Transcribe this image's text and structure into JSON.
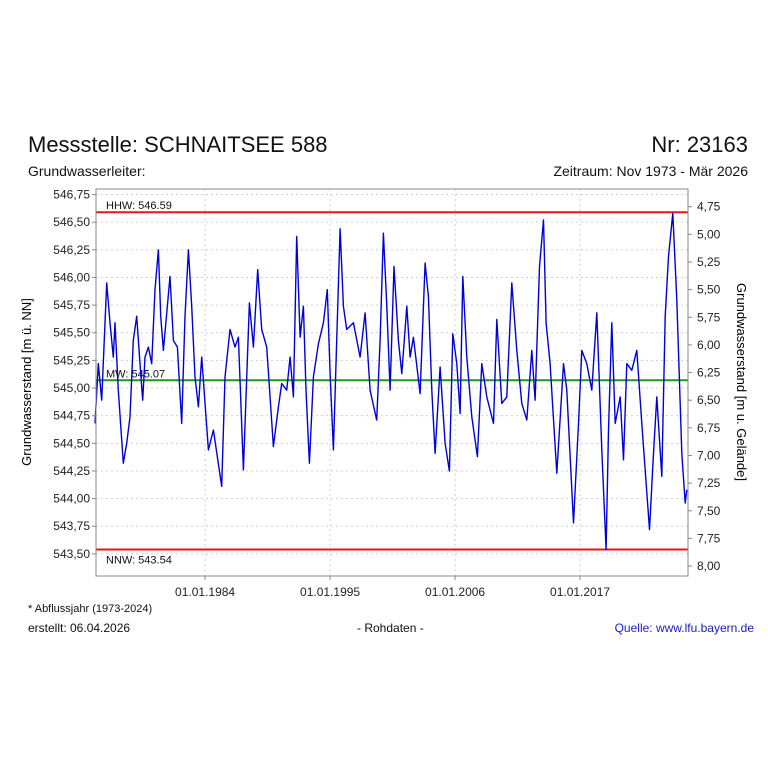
{
  "header": {
    "title": "Messstelle: SCHNAITSEE 588",
    "number": "Nr: 23163",
    "aquifer_label": "Grundwasserleiter:",
    "period": "Zeitraum: Nov 1973 - Mär 2026"
  },
  "footer": {
    "note": "* Abflussjahr (1973-2024)",
    "created": "erstellt:  06.04.2026",
    "data_kind": "- Rohdaten -",
    "source": "Quelle: www.lfu.bayern.de"
  },
  "colors": {
    "series": "#0000dd",
    "extreme_lines": "#e8141c",
    "mean_line": "#1a9a1a",
    "source_link": "#1a1acc"
  },
  "chart_data": {
    "type": "line",
    "ylabel": "Grundwasserstand [m ü. NN]",
    "y2label": "Grundwasserstand [m u. Gelände]",
    "ylim": [
      543.3,
      546.8
    ],
    "xlim": [
      1974.4,
      2026.5
    ],
    "ground_level": 551.39,
    "yticks": [
      "546,75",
      "546,50",
      "546,25",
      "546,00",
      "545,75",
      "545,50",
      "545,25",
      "545,00",
      "544,75",
      "544,50",
      "544,25",
      "544,00",
      "543,75",
      "543,50"
    ],
    "ytick_values": [
      546.75,
      546.5,
      546.25,
      546.0,
      545.75,
      545.5,
      545.25,
      545.0,
      544.75,
      544.5,
      544.25,
      544.0,
      543.75,
      543.5
    ],
    "y2ticks": [
      "4,75",
      "5,00",
      "5,25",
      "5,50",
      "5,75",
      "6,00",
      "6,25",
      "6,50",
      "6,75",
      "7,00",
      "7,25",
      "7,50",
      "7,75",
      "8,00"
    ],
    "y2tick_values": [
      4.75,
      5.0,
      5.25,
      5.5,
      5.75,
      6.0,
      6.25,
      6.5,
      6.75,
      7.0,
      7.25,
      7.5,
      7.75,
      8.0
    ],
    "xticks": [
      "01.01.1984",
      "01.01.1995",
      "01.01.2006",
      "01.01.2017"
    ],
    "xtick_values": [
      1984.0,
      1995.0,
      2006.0,
      2017.0
    ],
    "reference_lines": [
      {
        "label": "HHW: 546.59",
        "value": 546.59,
        "kind": "extreme"
      },
      {
        "label": "MW: 545.07",
        "value": 545.07,
        "kind": "mean"
      },
      {
        "label": "NNW: 543.54",
        "value": 543.54,
        "kind": "extreme"
      }
    ],
    "series": [
      {
        "name": "Grundwasserstand",
        "x": [
          1974.31,
          1974.6,
          1974.9,
          1975.34,
          1975.63,
          1975.92,
          1976.07,
          1976.36,
          1976.8,
          1977.1,
          1977.39,
          1977.68,
          1977.98,
          1978.27,
          1978.51,
          1978.71,
          1979.01,
          1979.3,
          1979.59,
          1979.89,
          1980.09,
          1980.33,
          1980.91,
          1981.21,
          1981.56,
          1981.94,
          1982.23,
          1982.53,
          1982.82,
          1983.11,
          1983.41,
          1983.7,
          1984.29,
          1984.73,
          1985.46,
          1985.75,
          1986.19,
          1986.63,
          1986.93,
          1987.37,
          1987.9,
          1988.25,
          1988.63,
          1988.98,
          1989.42,
          1990.01,
          1990.45,
          1990.74,
          1991.18,
          1991.48,
          1991.77,
          1992.06,
          1992.36,
          1992.65,
          1992.88,
          1993.18,
          1993.53,
          1993.97,
          1994.41,
          1994.76,
          1995.0,
          1995.29,
          1995.58,
          1995.88,
          1996.17,
          1996.46,
          1997.05,
          1997.64,
          1998.08,
          1998.52,
          1999.1,
          1999.4,
          1999.69,
          1999.99,
          2000.28,
          2000.63,
          2001.01,
          2001.31,
          2001.75,
          2002.04,
          2002.33,
          2002.92,
          2003.36,
          2003.65,
          2003.95,
          2004.24,
          2004.68,
          2005.12,
          2005.5,
          2005.8,
          2006.15,
          2006.44,
          2006.68,
          2007.03,
          2007.47,
          2007.97,
          2008.35,
          2008.79,
          2009.38,
          2009.67,
          2010.11,
          2010.55,
          2010.99,
          2011.43,
          2011.87,
          2012.31,
          2012.75,
          2013.04,
          2013.43,
          2013.78,
          2014.01,
          2014.36,
          2014.95,
          2015.54,
          2015.83,
          2016.42,
          2016.86,
          2017.15,
          2017.59,
          2018.03,
          2018.47,
          2018.91,
          2019.29,
          2019.5,
          2019.79,
          2020.09,
          2020.53,
          2020.82,
          2021.11,
          2021.55,
          2021.99,
          2022.43,
          2023.11,
          2023.46,
          2023.75,
          2024.19,
          2024.49,
          2024.78,
          2025.16,
          2025.51,
          2025.95,
          2026.25,
          2026.39
        ],
        "y": [
          544.68,
          545.22,
          544.89,
          545.95,
          545.59,
          545.28,
          545.59,
          544.98,
          544.32,
          544.5,
          544.74,
          545.43,
          545.65,
          545.22,
          544.89,
          545.28,
          545.37,
          545.22,
          545.89,
          546.25,
          545.65,
          545.34,
          546.01,
          545.43,
          545.37,
          544.68,
          545.65,
          546.25,
          545.74,
          545.1,
          544.83,
          545.28,
          544.44,
          544.62,
          544.11,
          545.1,
          545.53,
          545.37,
          545.46,
          544.26,
          545.77,
          545.37,
          546.07,
          545.53,
          545.37,
          544.47,
          544.83,
          545.04,
          544.98,
          545.28,
          544.92,
          546.37,
          545.46,
          545.74,
          544.98,
          544.32,
          545.1,
          545.4,
          545.59,
          545.89,
          545.13,
          544.44,
          545.43,
          546.44,
          545.74,
          545.53,
          545.59,
          545.28,
          545.68,
          544.98,
          544.71,
          545.43,
          546.4,
          545.74,
          544.98,
          546.1,
          545.43,
          545.13,
          545.74,
          545.28,
          545.46,
          544.95,
          546.13,
          545.83,
          544.98,
          544.41,
          545.19,
          544.5,
          544.25,
          545.49,
          545.22,
          544.77,
          546.01,
          545.28,
          544.74,
          544.38,
          545.22,
          544.92,
          544.68,
          545.62,
          544.86,
          544.92,
          545.95,
          545.34,
          544.86,
          544.71,
          545.34,
          544.89,
          546.1,
          546.52,
          545.59,
          545.22,
          544.23,
          545.22,
          544.98,
          543.78,
          544.68,
          545.34,
          545.22,
          544.98,
          545.68,
          544.44,
          543.54,
          544.62,
          545.59,
          544.68,
          544.92,
          544.35,
          545.22,
          545.16,
          545.34,
          544.68,
          543.72,
          544.41,
          544.92,
          544.2,
          545.65,
          546.19,
          546.58,
          545.8,
          544.41,
          543.96,
          544.08
        ]
      }
    ]
  }
}
